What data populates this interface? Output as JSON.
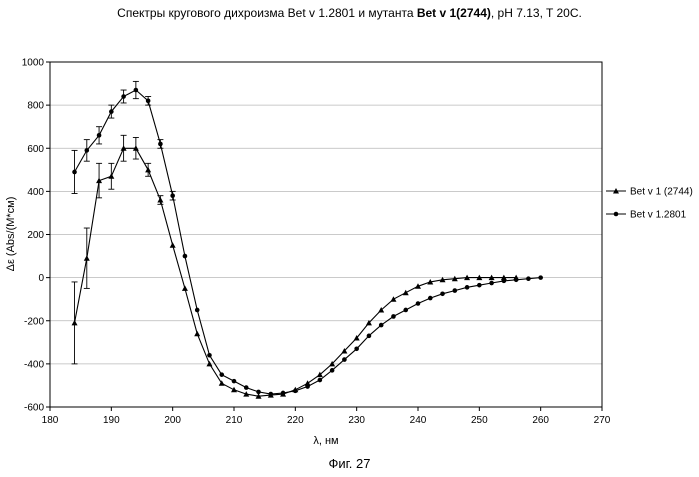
{
  "title": {
    "part1": "Спектры кругового дихроизма Bet v 1.2801 и мутанта ",
    "part2": "Bet v 1(2744)",
    "part3": ", pH 7.13, T 20C."
  },
  "figure_caption": "Фиг. 27",
  "chart_data": {
    "type": "line",
    "title": "Спектры кругового дихроизма Bet v 1.2801 и мутанта Bet v 1(2744), pH 7.13, T 20C.",
    "xlabel": "λ, нм",
    "ylabel": "Δε (Abs/(M*см)",
    "xlim": [
      180,
      270
    ],
    "ylim": [
      -600,
      1000
    ],
    "xticks": [
      "180",
      "190",
      "200",
      "210",
      "220",
      "230",
      "240",
      "250",
      "260",
      "270"
    ],
    "yticks": [
      "-600",
      "-400",
      "-200",
      "0",
      "200",
      "400",
      "600",
      "800",
      "1000"
    ],
    "grid": "horizontal",
    "legend_position": "right",
    "series": [
      {
        "name": "Bet v 1 (2744)",
        "marker": "triangle",
        "x": [
          184,
          186,
          188,
          190,
          192,
          194,
          196,
          198,
          200,
          202,
          204,
          206,
          208,
          210,
          212,
          214,
          216,
          218,
          220,
          222,
          224,
          226,
          228,
          230,
          232,
          234,
          236,
          238,
          240,
          242,
          244,
          246,
          248,
          250,
          252,
          254,
          256
        ],
        "y": [
          -210,
          90,
          450,
          470,
          600,
          600,
          500,
          360,
          150,
          -50,
          -260,
          -400,
          -490,
          -520,
          -540,
          -550,
          -545,
          -540,
          -520,
          -490,
          -450,
          -400,
          -340,
          -280,
          -210,
          -150,
          -100,
          -70,
          -40,
          -20,
          -10,
          -5,
          0,
          0,
          0,
          0,
          0
        ],
        "error": [
          190,
          140,
          80,
          60,
          60,
          50,
          30,
          20,
          0,
          0,
          0,
          0,
          0,
          0,
          0,
          0,
          0,
          0,
          0,
          0,
          0,
          0,
          0,
          0,
          0,
          0,
          0,
          0,
          0,
          0,
          0,
          0,
          0,
          0,
          0,
          0,
          0
        ]
      },
      {
        "name": "Bet v 1.2801",
        "marker": "circle",
        "x": [
          184,
          186,
          188,
          190,
          192,
          194,
          196,
          198,
          200,
          202,
          204,
          206,
          208,
          210,
          212,
          214,
          216,
          218,
          220,
          222,
          224,
          226,
          228,
          230,
          232,
          234,
          236,
          238,
          240,
          242,
          244,
          246,
          248,
          250,
          252,
          254,
          256,
          258,
          260
        ],
        "y": [
          490,
          590,
          660,
          770,
          840,
          870,
          820,
          620,
          380,
          100,
          -150,
          -360,
          -450,
          -480,
          -510,
          -530,
          -540,
          -535,
          -525,
          -505,
          -475,
          -430,
          -380,
          -330,
          -270,
          -220,
          -180,
          -150,
          -120,
          -95,
          -75,
          -60,
          -45,
          -35,
          -25,
          -15,
          -10,
          -5,
          0
        ],
        "error": [
          100,
          50,
          40,
          30,
          30,
          40,
          20,
          20,
          20,
          0,
          0,
          0,
          0,
          0,
          0,
          0,
          0,
          0,
          0,
          0,
          0,
          0,
          0,
          0,
          0,
          0,
          0,
          0,
          0,
          0,
          0,
          0,
          0,
          0,
          0,
          0,
          0,
          0,
          0
        ]
      }
    ]
  }
}
